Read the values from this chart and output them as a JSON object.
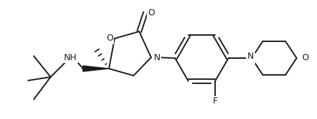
{
  "background_color": "#ffffff",
  "line_color": "#1a1a1a",
  "line_width": 1.4,
  "figsize": [
    4.52,
    1.7
  ],
  "dpi": 100,
  "xlim": [
    0,
    452
  ],
  "ylim": [
    0,
    170
  ]
}
